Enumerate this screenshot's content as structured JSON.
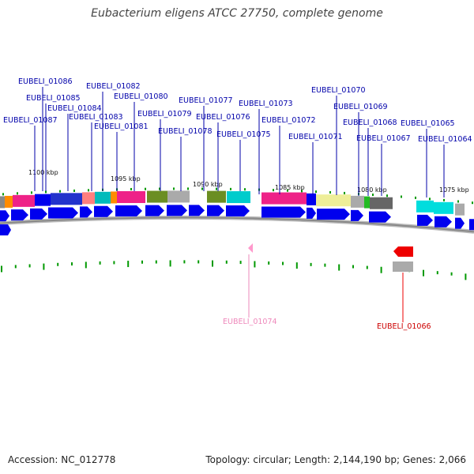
{
  "title": "Eubacterium eligens ATCC 27750, complete genome",
  "accession": "Accession: NC_012778",
  "summary": "Topology: circular; Length: 2,144,190 bp; Genes: 2,066",
  "colors": {
    "forward_gene": "#0000ee",
    "label_blue": "#0000aa",
    "reverse_gene": "#ee0000",
    "label_red": "#cc0000",
    "label_pink": "#ee88bb",
    "tick": "#009900",
    "backbone": "#888888"
  },
  "tick_labels": [
    "1100 kbp",
    "1095 kbp",
    "1090 kbp",
    "1085 kbp",
    "1080 kbp",
    "1075 kbp"
  ],
  "gene_labels": [
    {
      "text": "EUBELI_01086",
      "strand": "forward"
    },
    {
      "text": "EUBELI_01085",
      "strand": "forward"
    },
    {
      "text": "EUBELI_01084",
      "strand": "forward"
    },
    {
      "text": "EUBELI_01087",
      "strand": "forward"
    },
    {
      "text": "EUBELI_01083",
      "strand": "forward"
    },
    {
      "text": "EUBELI_01082",
      "strand": "forward"
    },
    {
      "text": "EUBELI_01081",
      "strand": "forward"
    },
    {
      "text": "EUBELI_01080",
      "strand": "forward"
    },
    {
      "text": "EUBELI_01079",
      "strand": "forward"
    },
    {
      "text": "EUBELI_01078",
      "strand": "forward"
    },
    {
      "text": "EUBELI_01077",
      "strand": "forward"
    },
    {
      "text": "EUBELI_01076",
      "strand": "forward"
    },
    {
      "text": "EUBELI_01075",
      "strand": "forward"
    },
    {
      "text": "EUBELI_01073",
      "strand": "forward"
    },
    {
      "text": "EUBELI_01072",
      "strand": "forward"
    },
    {
      "text": "EUBELI_01071",
      "strand": "forward"
    },
    {
      "text": "EUBELI_01070",
      "strand": "forward"
    },
    {
      "text": "EUBELI_01069",
      "strand": "forward"
    },
    {
      "text": "EUBELI_01068",
      "strand": "forward"
    },
    {
      "text": "EUBELI_01067",
      "strand": "forward"
    },
    {
      "text": "EUBELI_01065",
      "strand": "forward"
    },
    {
      "text": "EUBELI_01064",
      "strand": "forward"
    },
    {
      "text": "EUBELI_01074",
      "strand": "reverse-pink"
    },
    {
      "text": "EUBELI_01066",
      "strand": "reverse"
    }
  ]
}
